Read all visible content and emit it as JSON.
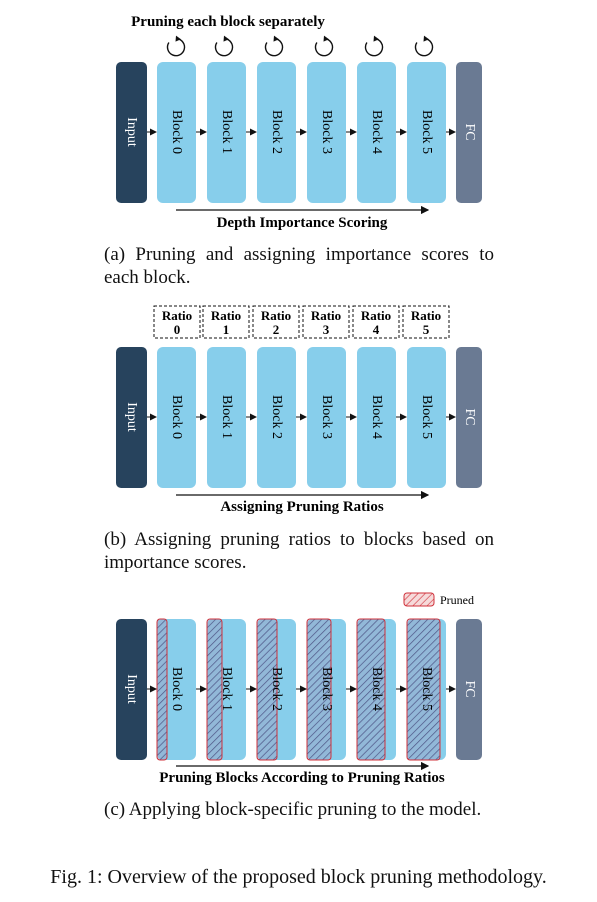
{
  "panel_a": {
    "top_label": "Pruning each block separately",
    "input_label": "Input",
    "fc_label": "FC",
    "blocks": [
      "Block 0",
      "Block 1",
      "Block 2",
      "Block 3",
      "Block 4",
      "Block 5"
    ],
    "arrow_label": "Depth Importance Scoring",
    "caption": "(a) Pruning and assigning importance scores to each block."
  },
  "panel_b": {
    "input_label": "Input",
    "fc_label": "FC",
    "blocks": [
      "Block 0",
      "Block 1",
      "Block 2",
      "Block 3",
      "Block 4",
      "Block 5"
    ],
    "ratio_word": "Ratio",
    "ratios": [
      "0",
      "1",
      "2",
      "3",
      "4",
      "5"
    ],
    "arrow_label": "Assigning Pruning Ratios",
    "caption": "(b) Assigning pruning ratios to blocks based on importance scores."
  },
  "panel_c": {
    "input_label": "Input",
    "fc_label": "FC",
    "blocks": [
      "Block 0",
      "Block 1",
      "Block 2",
      "Block 3",
      "Block 4",
      "Block 5"
    ],
    "legend_label": "Pruned",
    "arrow_label": "Pruning Blocks According to Pruning Ratios",
    "caption": "(c) Applying block-specific pruning to the model."
  },
  "figure_caption": "Fig. 1: Overview of the proposed block pruning methodology.",
  "colors": {
    "input": "#27435d",
    "block": "#87ceeb",
    "fc": "#6a7a93",
    "pruned_stroke": "#d0303a",
    "hatch": "#5a5f8a"
  }
}
